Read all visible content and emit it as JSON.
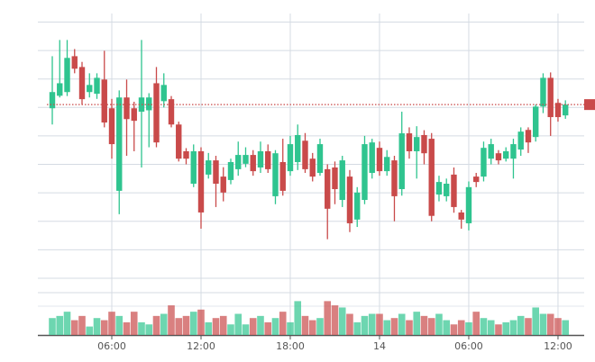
{
  "chart_data": {
    "type": "candlestick",
    "x": [
      2,
      2.5,
      3,
      3.5,
      4,
      4.5,
      5,
      5.5,
      6,
      6.5,
      7,
      7.5,
      8,
      8.5,
      9,
      9.5,
      10,
      10.5,
      11,
      11.5,
      12,
      12.5,
      13,
      13.5,
      14,
      14.5,
      15,
      15.5,
      16,
      16.5,
      17,
      17.5,
      18,
      18.5,
      19,
      19.5,
      20,
      20.5,
      21,
      21.5,
      22,
      22.5,
      23,
      23.5,
      24,
      24.5,
      25,
      25.5,
      26,
      26.5,
      27,
      27.5,
      28,
      28.5,
      29,
      29.5,
      30,
      30.5,
      31,
      31.5,
      32,
      32.5,
      33,
      33.5,
      34,
      34.5,
      35,
      35.5,
      36,
      36.5
    ],
    "open": [
      69.7,
      74.1,
      75.4,
      88,
      84.2,
      75.4,
      74.8,
      79.8,
      69.7,
      40.7,
      73.5,
      69.7,
      68.5,
      69,
      78.5,
      72.2,
      72.9,
      64,
      54.6,
      43.2,
      54.6,
      46.4,
      51.4,
      45.7,
      44.5,
      48.3,
      50.2,
      53.3,
      48.9,
      54.6,
      38.8,
      50.8,
      47.6,
      50.8,
      58.3,
      52,
      47,
      48.3,
      48.9,
      37.5,
      45.7,
      30.6,
      37.5,
      47,
      55.8,
      47.6,
      51.4,
      41.3,
      60.9,
      54.6,
      60.3,
      59,
      39.4,
      38.8,
      46.4,
      33.1,
      29.3,
      45.7,
      45.7,
      52,
      53.9,
      52,
      52,
      55.2,
      62.1,
      59.6,
      70.3,
      80.4,
      71.6,
      67.2
    ],
    "high": [
      88,
      93.7,
      93.7,
      90.5,
      86,
      82,
      82,
      89.9,
      73,
      76,
      79.8,
      72,
      93.7,
      75,
      84.2,
      82,
      74,
      65,
      55.7,
      57,
      56,
      54,
      53,
      49,
      52,
      58,
      56,
      55,
      58,
      57,
      55,
      59,
      60,
      64,
      61,
      54,
      59,
      50,
      51,
      53,
      48,
      42,
      60,
      59,
      58,
      55,
      53,
      68.5,
      63,
      63.4,
      62,
      61,
      46,
      45,
      48.9,
      34,
      44,
      47,
      58,
      59,
      55,
      56,
      59,
      63,
      63,
      71,
      82,
      82.3,
      73,
      72.5
    ],
    "low": [
      64,
      73.5,
      74,
      82,
      71,
      73.5,
      73,
      63,
      52,
      32.5,
      53,
      54.6,
      48.9,
      56,
      56,
      70,
      63,
      51,
      50,
      42,
      27.4,
      45,
      35,
      37,
      43,
      46,
      49,
      46,
      47,
      47,
      36,
      39,
      46,
      48,
      47,
      44,
      46,
      23.7,
      36,
      35,
      26.2,
      28,
      36,
      45,
      46,
      46,
      30,
      39,
      52,
      45,
      50,
      30,
      37,
      37,
      33,
      27.4,
      26.8,
      42,
      44,
      50,
      50,
      51,
      45,
      53,
      54,
      58,
      68,
      60,
      65,
      66
    ],
    "close": [
      75.4,
      78.5,
      87.4,
      83.6,
      72.9,
      77.9,
      80.4,
      64.7,
      57.1,
      73.5,
      65.9,
      65.3,
      73.5,
      73.5,
      57.7,
      77.9,
      64,
      52,
      52,
      54.6,
      33.1,
      51.4,
      43.2,
      40.1,
      50.8,
      53.3,
      53.3,
      47.6,
      54.6,
      48.3,
      53.9,
      40.7,
      57.1,
      60.3,
      48.3,
      45.7,
      57.1,
      34.4,
      41.3,
      51.4,
      29.3,
      40.1,
      57.1,
      57.7,
      47.6,
      52.6,
      38.8,
      60.9,
      54.6,
      59.6,
      53.9,
      31.9,
      43.8,
      43.2,
      35,
      30.6,
      42,
      43.8,
      55.8,
      57.1,
      51.4,
      54.6,
      57.1,
      61.5,
      57.7,
      70.3,
      80.4,
      66.6,
      66.6,
      71
    ],
    "volume": [
      40,
      45,
      55,
      35,
      45,
      20,
      40,
      35,
      55,
      45,
      30,
      55,
      30,
      25,
      45,
      50,
      70,
      40,
      45,
      55,
      60,
      30,
      40,
      45,
      25,
      50,
      25,
      40,
      45,
      30,
      40,
      55,
      30,
      80,
      45,
      35,
      40,
      80,
      70,
      65,
      50,
      30,
      45,
      50,
      50,
      35,
      40,
      50,
      35,
      55,
      45,
      40,
      50,
      35,
      25,
      35,
      30,
      55,
      40,
      35,
      25,
      30,
      35,
      45,
      40,
      65,
      50,
      50,
      40,
      35
    ],
    "up_color": "#2fc48f",
    "down_color": "#c94a4a",
    "xlim": [
      1.03,
      37.76
    ],
    "xticks": [
      {
        "value": 6,
        "label": "06:00"
      },
      {
        "value": 12,
        "label": "12:00"
      },
      {
        "value": 18,
        "label": "18:00"
      },
      {
        "value": 24,
        "label": "14"
      },
      {
        "value": 30,
        "label": "06:00"
      },
      {
        "value": 36,
        "label": "12:00"
      }
    ],
    "ylim": [
      6.5,
      103
    ],
    "yticks": [
      10,
      20,
      30,
      40,
      50,
      60,
      70,
      80,
      90,
      100
    ],
    "volume_ylim": [
      0,
      100
    ],
    "grid": true
  }
}
